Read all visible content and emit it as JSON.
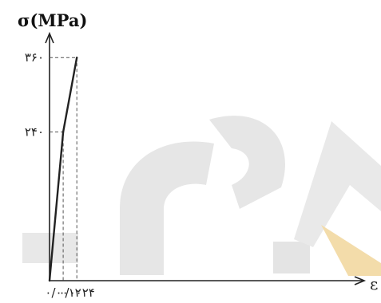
{
  "chart_data": {
    "type": "line",
    "title": "",
    "ylabel": "σ(MPa)",
    "xlabel": "ε",
    "xlim": [
      0,
      0.0278
    ],
    "ylim": [
      0,
      395
    ],
    "x_ticks": [
      {
        "value": 0.0012,
        "label": "۰/۰۰۱۲"
      },
      {
        "value": 0.0024,
        "label": "۰/۰۰۲۴"
      }
    ],
    "y_ticks": [
      {
        "value": 240,
        "label": "۲۴۰"
      },
      {
        "value": 360,
        "label": "۳۶۰"
      }
    ],
    "series": [
      {
        "points": [
          {
            "x": 0,
            "y": 0
          },
          {
            "x": 0.0012,
            "y": 240
          },
          {
            "x": 0.0024,
            "y": 360
          }
        ]
      }
    ],
    "grid": false,
    "guides": "dashed",
    "colors": {
      "line": "#222222",
      "watermark_gray": "#e3e3e3",
      "watermark_yellow": "#f3dcaa"
    }
  }
}
